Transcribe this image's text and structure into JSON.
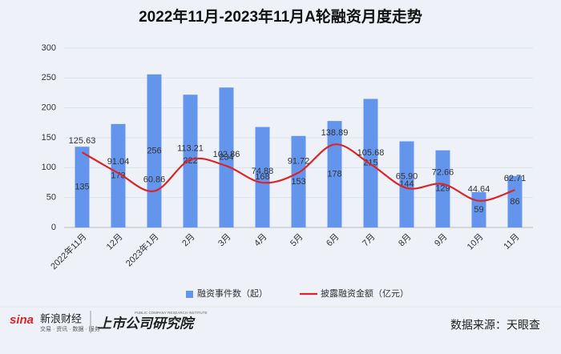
{
  "chart_data": {
    "type": "bar-line",
    "title": "2022年11月-2023年11月A轮融资月度走势",
    "categories": [
      "2022年11月",
      "12月",
      "2023年1月",
      "2月",
      "3月",
      "4月",
      "5月",
      "6月",
      "7月",
      "8月",
      "9月",
      "10月",
      "11月"
    ],
    "series": [
      {
        "name": "融资事件数（起）",
        "type": "bar",
        "color": "#6495ed",
        "values": [
          135,
          173,
          256,
          222,
          234,
          168,
          153,
          178,
          215,
          144,
          129,
          59,
          86
        ]
      },
      {
        "name": "披露融资金额（亿元）",
        "type": "line",
        "color": "#d9262b",
        "values": [
          125.63,
          91.04,
          60.86,
          113.21,
          102.86,
          74.88,
          91.72,
          138.89,
          105.68,
          65.9,
          72.66,
          44.64,
          62.71
        ],
        "value_labels": [
          "125.63",
          "91.04",
          "60.86",
          "113.21",
          "102.86",
          "74.88",
          "91.72",
          "138.89",
          "105.68",
          "65.90",
          "72.66",
          "44.64",
          "62.71"
        ]
      }
    ],
    "ylim": [
      0,
      300
    ],
    "yticks": [
      0,
      50,
      100,
      150,
      200,
      250,
      300
    ],
    "grid": true,
    "legend": "bottom"
  },
  "footer": {
    "logo1": "sina",
    "logo1_name": "新浪财经",
    "logo1_sub": "交易 · 资讯 · 数据 · 服务",
    "logo2_sub": "PUBLIC COMPANY RESEARCH INSTITUTE",
    "logo2": "上市公司研究院",
    "source": "数据来源：天眼查"
  }
}
